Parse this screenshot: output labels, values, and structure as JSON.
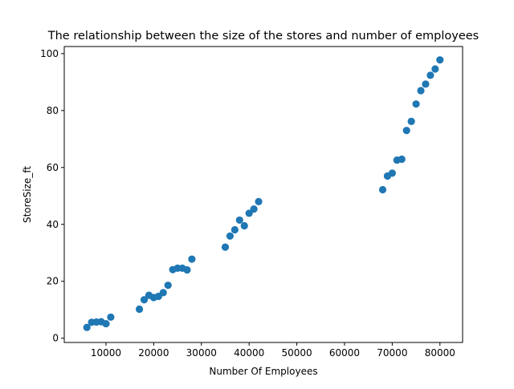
{
  "chart_data": {
    "type": "scatter",
    "title": "The relationship between the size of the stores and number of employees",
    "xlabel": "Number Of Employees",
    "ylabel": "StoreSize_ft",
    "xlim": [
      1250,
      84750
    ],
    "ylim": [
      -1.5,
      102.5
    ],
    "xticks": [
      10000,
      20000,
      30000,
      40000,
      50000,
      60000,
      70000,
      80000
    ],
    "yticks": [
      0,
      20,
      40,
      60,
      80,
      100
    ],
    "grid": false,
    "legend": "none",
    "marker_color": "#1f77b4",
    "series": [
      {
        "x": [
          6000,
          7000,
          8000,
          9000,
          10000,
          11000,
          17000,
          18000,
          19000,
          20000,
          21000,
          22000,
          23000,
          24000,
          25000,
          26000,
          27000,
          28000,
          35000,
          36000,
          37000,
          38000,
          39000,
          40000,
          41000,
          42000,
          68000,
          69000,
          70000,
          71000,
          72000,
          73000,
          74000,
          75000,
          76000,
          77000,
          78000,
          79000,
          80000
        ],
        "y": [
          3.8,
          5.6,
          5.7,
          5.8,
          5.1,
          7.4,
          10.2,
          13.5,
          15.1,
          14.3,
          14.7,
          16.0,
          18.6,
          24.1,
          24.6,
          24.6,
          24.0,
          27.8,
          32.0,
          35.9,
          38.1,
          41.5,
          39.5,
          43.9,
          45.4,
          48.0,
          52.2,
          57.0,
          58.0,
          62.6,
          62.9,
          73.0,
          76.2,
          82.3,
          87.0,
          89.3,
          92.4,
          94.6,
          97.8
        ]
      }
    ]
  }
}
